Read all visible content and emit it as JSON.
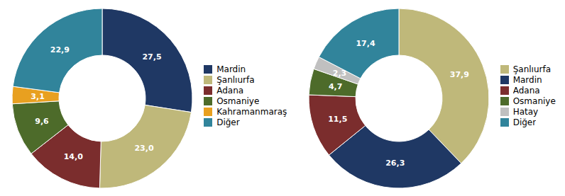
{
  "chart_data": [
    {
      "type": "donut",
      "categories": [
        "Mardin",
        "Şanlıurfa",
        "Adana",
        "Osmaniye",
        "Kahramanmaraş",
        "Diğer"
      ],
      "values": [
        27.5,
        23.0,
        14.0,
        9.6,
        3.1,
        22.9
      ],
      "value_labels": [
        "27,5",
        "23,0",
        "14,0",
        "9,6",
        "3,1",
        "22,9"
      ],
      "colors": [
        "#1F3864",
        "#BFB87A",
        "#7B2D2D",
        "#4D6B2A",
        "#E8A020",
        "#31849B"
      ],
      "data_labels": true,
      "legend": "right"
    },
    {
      "type": "donut",
      "categories": [
        "Şanlıurfa",
        "Mardin",
        "Adana",
        "Osmaniye",
        "Hatay",
        "Diğer"
      ],
      "values": [
        37.9,
        26.3,
        11.5,
        4.7,
        2.3,
        17.4
      ],
      "value_labels": [
        "37,9",
        "26,3",
        "11,5",
        "4,7",
        "2,3",
        "17,4"
      ],
      "colors": [
        "#BFB87A",
        "#1F3864",
        "#7B2D2D",
        "#4D6B2A",
        "#C0C0C0",
        "#31849B"
      ],
      "data_labels": true,
      "legend": "right"
    }
  ]
}
